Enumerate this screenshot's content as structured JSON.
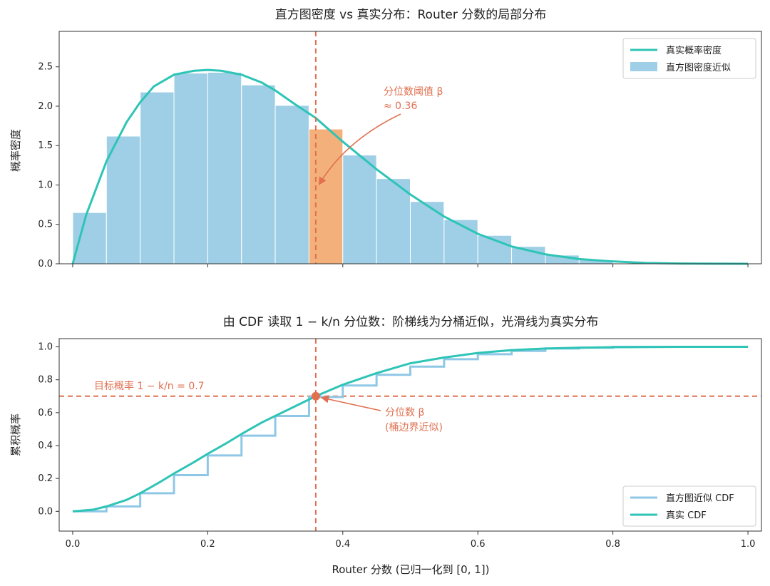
{
  "colors": {
    "curve": "#2ec4b6",
    "bar": "#9ecfe6",
    "highlight": "#f4b07a",
    "annotation": "#e07050",
    "step": "#8ec8e6"
  },
  "chart_data": [
    {
      "type": "bar",
      "title": "直方图密度 vs 真实分布：Router 分数的局部分布",
      "ylabel": "概率密度",
      "xlim": [
        -0.02,
        1.02
      ],
      "ylim": [
        0,
        2.95
      ],
      "xticks": [
        0.0,
        0.2,
        0.4,
        0.6,
        0.8,
        1.0
      ],
      "yticks": [
        "0.0",
        "0.5",
        "1.0",
        "1.5",
        "2.0",
        "2.5"
      ],
      "bin_width": 0.05,
      "bins_left": [
        0.0,
        0.05,
        0.1,
        0.15,
        0.2,
        0.25,
        0.3,
        0.35,
        0.4,
        0.45,
        0.5,
        0.55,
        0.6,
        0.65,
        0.7,
        0.75
      ],
      "density": [
        0.65,
        1.62,
        2.18,
        2.42,
        2.43,
        2.27,
        2.01,
        1.71,
        1.38,
        1.08,
        0.79,
        0.56,
        0.36,
        0.22,
        0.11,
        0.05
      ],
      "highlight_bin": 7,
      "true_density": {
        "x": [
          0.0,
          0.02,
          0.05,
          0.08,
          0.1,
          0.12,
          0.15,
          0.18,
          0.2,
          0.22,
          0.25,
          0.28,
          0.3,
          0.33,
          0.36,
          0.4,
          0.45,
          0.5,
          0.55,
          0.6,
          0.65,
          0.7,
          0.75,
          0.8,
          0.85,
          0.9,
          0.95,
          1.0
        ],
        "y": [
          0.0,
          0.62,
          1.3,
          1.8,
          2.05,
          2.25,
          2.4,
          2.45,
          2.46,
          2.45,
          2.4,
          2.3,
          2.2,
          2.02,
          1.85,
          1.55,
          1.2,
          0.88,
          0.6,
          0.38,
          0.22,
          0.12,
          0.06,
          0.03,
          0.01,
          0.003,
          0.001,
          0.0
        ]
      },
      "vline_x": 0.36,
      "annotation": {
        "line1": "分位数阈值 β",
        "line2": "≈ 0.36"
      },
      "legend": [
        "真实概率密度",
        "直方图密度近似"
      ]
    },
    {
      "type": "line",
      "title": "由 CDF 读取 1 − k/n 分位数：阶梯线为分桶近似，光滑线为真实分布",
      "ylabel": "累积概率",
      "xlabel": "Router 分数 (已归一化到 [0, 1])",
      "xlim": [
        -0.02,
        1.02
      ],
      "ylim": [
        -0.12,
        1.05
      ],
      "xticks": [
        "0.0",
        "0.2",
        "0.4",
        "0.6",
        "0.8",
        "1.0"
      ],
      "yticks": [
        "0.0",
        "0.2",
        "0.4",
        "0.6",
        "0.8",
        "1.0"
      ],
      "step_cdf": {
        "edges": [
          0.0,
          0.05,
          0.1,
          0.15,
          0.2,
          0.25,
          0.3,
          0.35,
          0.4,
          0.45,
          0.5,
          0.55,
          0.6,
          0.65,
          0.7,
          0.75,
          0.8,
          0.85,
          0.9,
          0.95,
          1.0
        ],
        "values": [
          0.0,
          0.03,
          0.11,
          0.22,
          0.34,
          0.46,
          0.58,
          0.695,
          0.765,
          0.83,
          0.88,
          0.925,
          0.955,
          0.975,
          0.99,
          0.995,
          1.0,
          1.0,
          1.0,
          1.0
        ]
      },
      "true_cdf": {
        "x": [
          0.0,
          0.03,
          0.05,
          0.08,
          0.1,
          0.13,
          0.15,
          0.18,
          0.2,
          0.23,
          0.25,
          0.28,
          0.3,
          0.33,
          0.36,
          0.4,
          0.45,
          0.5,
          0.55,
          0.6,
          0.65,
          0.7,
          0.75,
          0.8,
          0.85,
          0.9,
          1.0
        ],
        "y": [
          0.0,
          0.01,
          0.03,
          0.07,
          0.11,
          0.18,
          0.23,
          0.3,
          0.35,
          0.42,
          0.47,
          0.54,
          0.58,
          0.64,
          0.7,
          0.77,
          0.84,
          0.9,
          0.935,
          0.963,
          0.98,
          0.99,
          0.995,
          0.998,
          0.999,
          1.0,
          1.0
        ]
      },
      "hline_y": 0.7,
      "vline_x": 0.36,
      "target_label": "目标概率  1 − k/n = 0.7",
      "point_annotation": {
        "line1": "分位数 β",
        "line2": "(桶边界近似)"
      },
      "legend": [
        "直方图近似 CDF",
        "真实 CDF"
      ]
    }
  ]
}
